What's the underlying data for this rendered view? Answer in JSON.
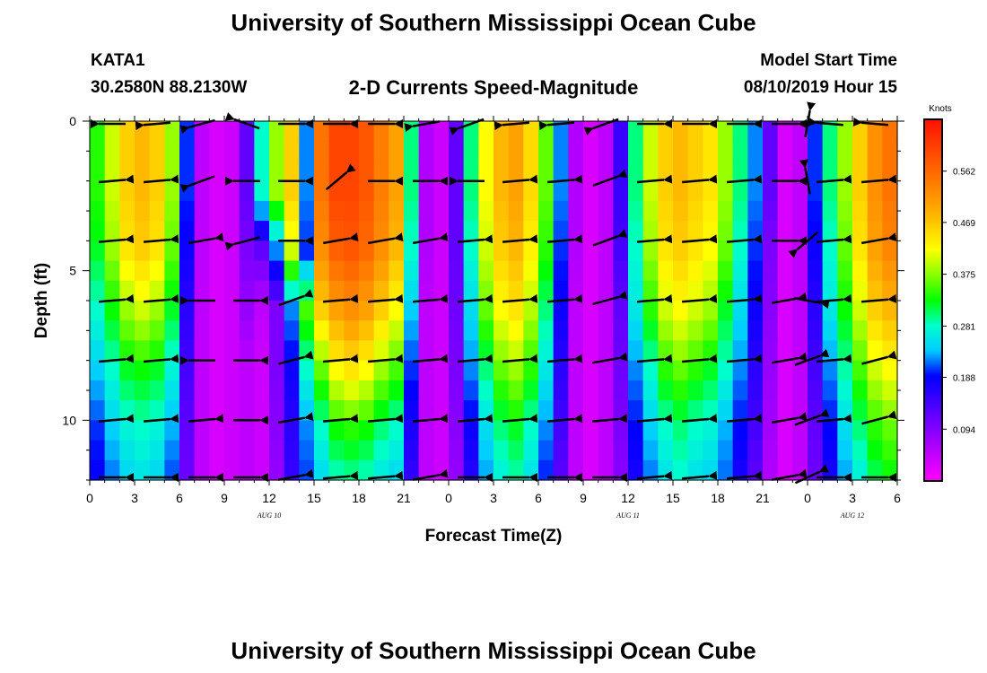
{
  "header": {
    "title": "University of Southern Mississippi Ocean Cube",
    "station": "KATA1",
    "location": "30.2580N 88.2130W",
    "subtitle": "2-D Currents Speed-Magnitude",
    "model_start_label": "Model Start Time",
    "model_start_value": "08/10/2019 Hour 15",
    "footer_title": "University of Southern Mississippi Ocean Cube"
  },
  "chart_data": {
    "type": "heatmap",
    "xlabel": "Forecast Time(Z)",
    "ylabel": "Depth (ft)",
    "x_tick_labels": [
      "0",
      "3",
      "6",
      "9",
      "12",
      "15",
      "18",
      "21",
      "0",
      "3",
      "6",
      "9",
      "12",
      "15",
      "18",
      "21",
      "0",
      "3",
      "6"
    ],
    "x_range_hours": [
      0,
      54
    ],
    "y_ticks": [
      0,
      5,
      10
    ],
    "y_range": [
      0,
      12
    ],
    "y_inverted": true,
    "date_labels": [
      {
        "text": "AUG  10",
        "hour": 12
      },
      {
        "text": "AUG  11",
        "hour": 36
      },
      {
        "text": "AUG  12",
        "hour": 51
      }
    ],
    "colorbar": {
      "label": "Knots",
      "ticks": [
        0.094,
        0.188,
        0.281,
        0.375,
        0.469,
        0.562
      ],
      "range": [
        0.0,
        0.656
      ]
    },
    "depths_ft": [
      0,
      2,
      4,
      6,
      8,
      10,
      12
    ],
    "times_hours": [
      0,
      1,
      2,
      3,
      4,
      5,
      6,
      7,
      8,
      9,
      10,
      11,
      12,
      13,
      14,
      15,
      16,
      17,
      18,
      19,
      20,
      21,
      22,
      23,
      24,
      25,
      26,
      27,
      28,
      29,
      30,
      31,
      32,
      33,
      34,
      35,
      36,
      37,
      38,
      39,
      40,
      41,
      42,
      43,
      44,
      45,
      46,
      47,
      48,
      49,
      50,
      51,
      52,
      53,
      54
    ],
    "speed_knots": [
      [
        0.34,
        0.4,
        0.46,
        0.48,
        0.46,
        0.38,
        0.2,
        0.05,
        0.03,
        0.04,
        0.12,
        0.28,
        0.38,
        0.46,
        0.22,
        0.55,
        0.6,
        0.6,
        0.58,
        0.54,
        0.5,
        0.3,
        0.06,
        0.04,
        0.12,
        0.3,
        0.42,
        0.48,
        0.5,
        0.45,
        0.36,
        0.22,
        0.06,
        0.03,
        0.05,
        0.15,
        0.3,
        0.4,
        0.46,
        0.48,
        0.46,
        0.44,
        0.38,
        0.3,
        0.22,
        0.12,
        0.03,
        0.05,
        0.2,
        0.3,
        0.38,
        0.46,
        0.52,
        0.55,
        0.58
      ],
      [
        0.34,
        0.4,
        0.46,
        0.48,
        0.46,
        0.38,
        0.2,
        0.05,
        0.03,
        0.04,
        0.12,
        0.28,
        0.38,
        0.46,
        0.22,
        0.55,
        0.6,
        0.6,
        0.58,
        0.54,
        0.5,
        0.3,
        0.06,
        0.04,
        0.12,
        0.3,
        0.42,
        0.48,
        0.5,
        0.45,
        0.36,
        0.22,
        0.06,
        0.03,
        0.05,
        0.15,
        0.3,
        0.4,
        0.46,
        0.48,
        0.46,
        0.44,
        0.38,
        0.3,
        0.22,
        0.12,
        0.03,
        0.05,
        0.2,
        0.3,
        0.38,
        0.46,
        0.52,
        0.55,
        0.58
      ],
      [
        0.32,
        0.38,
        0.44,
        0.46,
        0.44,
        0.36,
        0.18,
        0.05,
        0.03,
        0.04,
        0.1,
        0.12,
        0.22,
        0.4,
        0.2,
        0.52,
        0.57,
        0.58,
        0.56,
        0.52,
        0.48,
        0.28,
        0.06,
        0.04,
        0.12,
        0.28,
        0.4,
        0.46,
        0.48,
        0.43,
        0.34,
        0.2,
        0.06,
        0.03,
        0.05,
        0.14,
        0.28,
        0.38,
        0.44,
        0.46,
        0.44,
        0.42,
        0.36,
        0.28,
        0.2,
        0.1,
        0.03,
        0.05,
        0.18,
        0.28,
        0.36,
        0.44,
        0.5,
        0.53,
        0.55
      ],
      [
        0.28,
        0.33,
        0.38,
        0.4,
        0.38,
        0.32,
        0.16,
        0.05,
        0.03,
        0.04,
        0.08,
        0.05,
        0.1,
        0.22,
        0.35,
        0.46,
        0.5,
        0.52,
        0.5,
        0.46,
        0.42,
        0.24,
        0.05,
        0.04,
        0.11,
        0.25,
        0.36,
        0.42,
        0.44,
        0.39,
        0.3,
        0.18,
        0.05,
        0.03,
        0.05,
        0.12,
        0.26,
        0.34,
        0.4,
        0.42,
        0.4,
        0.38,
        0.32,
        0.25,
        0.18,
        0.09,
        0.03,
        0.05,
        0.16,
        0.26,
        0.33,
        0.4,
        0.46,
        0.48,
        0.5
      ],
      [
        0.24,
        0.28,
        0.32,
        0.33,
        0.32,
        0.27,
        0.14,
        0.05,
        0.03,
        0.04,
        0.05,
        0.04,
        0.1,
        0.18,
        0.28,
        0.36,
        0.42,
        0.44,
        0.42,
        0.38,
        0.35,
        0.2,
        0.05,
        0.04,
        0.1,
        0.22,
        0.3,
        0.36,
        0.38,
        0.34,
        0.26,
        0.16,
        0.05,
        0.03,
        0.05,
        0.11,
        0.22,
        0.28,
        0.34,
        0.36,
        0.34,
        0.32,
        0.28,
        0.22,
        0.16,
        0.08,
        0.03,
        0.05,
        0.14,
        0.22,
        0.29,
        0.35,
        0.4,
        0.42,
        0.44
      ],
      [
        0.2,
        0.24,
        0.27,
        0.28,
        0.27,
        0.23,
        0.12,
        0.05,
        0.03,
        0.04,
        0.05,
        0.04,
        0.09,
        0.16,
        0.22,
        0.28,
        0.33,
        0.34,
        0.33,
        0.3,
        0.28,
        0.17,
        0.05,
        0.04,
        0.09,
        0.18,
        0.25,
        0.3,
        0.32,
        0.28,
        0.22,
        0.14,
        0.05,
        0.03,
        0.05,
        0.1,
        0.19,
        0.24,
        0.28,
        0.3,
        0.28,
        0.27,
        0.23,
        0.19,
        0.14,
        0.07,
        0.03,
        0.05,
        0.12,
        0.19,
        0.25,
        0.3,
        0.34,
        0.36,
        0.38
      ],
      [
        0.18,
        0.21,
        0.24,
        0.25,
        0.24,
        0.2,
        0.11,
        0.05,
        0.03,
        0.04,
        0.05,
        0.04,
        0.08,
        0.15,
        0.2,
        0.24,
        0.27,
        0.28,
        0.27,
        0.25,
        0.24,
        0.15,
        0.05,
        0.04,
        0.08,
        0.16,
        0.22,
        0.26,
        0.28,
        0.25,
        0.19,
        0.12,
        0.05,
        0.03,
        0.05,
        0.09,
        0.17,
        0.21,
        0.25,
        0.27,
        0.25,
        0.24,
        0.21,
        0.17,
        0.12,
        0.06,
        0.03,
        0.05,
        0.11,
        0.17,
        0.22,
        0.26,
        0.3,
        0.32,
        0.34
      ]
    ],
    "vector_times_hours": [
      1.5,
      4.5,
      7.5,
      10.5,
      13.5,
      16.5,
      19.5,
      22.5,
      25.5,
      28.5,
      31.5,
      34.5,
      37.5,
      40.5,
      43.5,
      46.5,
      48.0,
      49.5,
      52.5
    ],
    "vector_depths_ft": [
      0,
      2,
      4,
      6,
      8,
      10,
      12
    ],
    "vector_angles_deg": [
      [
        180,
        185,
        195,
        160,
        0,
        0,
        0,
        190,
        200,
        185,
        185,
        200,
        0,
        0,
        0,
        0,
        80,
        175,
        175
      ],
      [
        5,
        5,
        200,
        180,
        0,
        40,
        0,
        0,
        180,
        5,
        5,
        20,
        5,
        5,
        5,
        0,
        100,
        5,
        5
      ],
      [
        5,
        5,
        10,
        195,
        0,
        10,
        10,
        10,
        5,
        5,
        5,
        20,
        5,
        5,
        5,
        0,
        220,
        5,
        10
      ],
      [
        5,
        5,
        180,
        0,
        20,
        5,
        5,
        5,
        5,
        5,
        5,
        15,
        5,
        5,
        5,
        10,
        350,
        5,
        5
      ],
      [
        5,
        5,
        180,
        0,
        15,
        5,
        5,
        5,
        5,
        5,
        5,
        10,
        5,
        5,
        5,
        10,
        20,
        5,
        15
      ],
      [
        5,
        5,
        5,
        0,
        10,
        5,
        5,
        5,
        5,
        5,
        5,
        5,
        5,
        5,
        5,
        10,
        20,
        5,
        15
      ],
      [
        0,
        0,
        0,
        0,
        10,
        5,
        5,
        10,
        0,
        0,
        0,
        0,
        5,
        5,
        5,
        10,
        25,
        0,
        0
      ]
    ]
  }
}
